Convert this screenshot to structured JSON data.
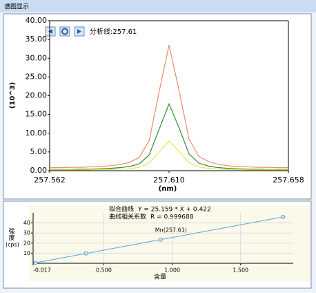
{
  "window": {
    "title": "谱图显示"
  },
  "chart_data": [
    {
      "type": "line",
      "annotation": "分析线:257.61",
      "xlabel": "(nm)",
      "ylabel": "(10^3)",
      "xlim": [
        257.562,
        257.658
      ],
      "xticks": [
        257.562,
        {
          "value": 257.61,
          "label": "257.610"
        },
        257.658
      ],
      "ylim": [
        0,
        40
      ],
      "yticks": [
        {
          "value": 0,
          "label": "0.00"
        },
        {
          "value": 5,
          "label": "5.00"
        },
        {
          "value": 10,
          "label": "10.00"
        },
        {
          "value": 15,
          "label": "15.00"
        },
        {
          "value": 20,
          "label": "20.00"
        },
        {
          "value": 25,
          "label": "25.00"
        },
        {
          "value": 30,
          "label": "30.00"
        },
        {
          "value": 35,
          "label": "35.00"
        },
        {
          "value": 40,
          "label": "40.00"
        }
      ],
      "grid": false,
      "x": [
        257.562,
        257.566,
        257.57,
        257.574,
        257.578,
        257.582,
        257.586,
        257.59,
        257.594,
        257.598,
        257.602,
        257.606,
        257.61,
        257.614,
        257.618,
        257.622,
        257.626,
        257.63,
        257.634,
        257.638,
        257.642,
        257.646,
        257.65,
        257.654,
        257.658
      ],
      "series": [
        {
          "color": "#f08a6a",
          "values": [
            0.8,
            0.8,
            0.9,
            0.9,
            1.0,
            1.1,
            1.3,
            1.6,
            2.2,
            3.5,
            8.0,
            21.0,
            33.5,
            21.5,
            8.5,
            3.8,
            2.4,
            1.7,
            1.3,
            1.1,
            1.0,
            0.9,
            0.9,
            0.8,
            0.8
          ]
        },
        {
          "color": "#2e8b2e",
          "values": [
            0.3,
            0.3,
            0.3,
            0.4,
            0.4,
            0.5,
            0.6,
            0.8,
            1.1,
            1.8,
            4.2,
            11.0,
            17.8,
            11.5,
            4.5,
            2.0,
            1.2,
            0.8,
            0.6,
            0.5,
            0.4,
            0.4,
            0.3,
            0.3,
            0.3
          ]
        },
        {
          "color": "#e8e84a",
          "values": [
            0.2,
            0.2,
            0.2,
            0.2,
            0.2,
            0.3,
            0.3,
            0.4,
            0.5,
            0.9,
            2.0,
            5.0,
            7.9,
            5.2,
            2.1,
            1.0,
            0.6,
            0.4,
            0.3,
            0.3,
            0.2,
            0.2,
            0.2,
            0.2,
            0.2
          ]
        }
      ]
    },
    {
      "type": "scatter",
      "fit_label": "拟合曲线",
      "fit_equation": "Y = 25.159 * X + 0.422",
      "r_label": "曲线相关系数",
      "r_value": "R = 0.999688",
      "xlabel": "含量",
      "ylabel": "强度",
      "ylabel_unit": "(cps)",
      "xlim": [
        -0.017,
        1.885
      ],
      "xticks": [
        {
          "value": -0.017,
          "label": "-0.017"
        },
        {
          "value": 0.5,
          "label": "0.500"
        },
        {
          "value": 1,
          "label": "1.000"
        },
        {
          "value": 1.5,
          "label": "1.500"
        }
      ],
      "ylim": [
        0,
        50
      ],
      "yticks": [
        10,
        20,
        30,
        40
      ],
      "grid": true,
      "x": [
        0,
        0.37,
        0.915,
        1.81
      ],
      "series": [
        {
          "name": "Mn(257.61)",
          "color": "#5aa0e0",
          "values": [
            0.42,
            9.73,
            23.44,
            45.96
          ]
        }
      ]
    }
  ]
}
